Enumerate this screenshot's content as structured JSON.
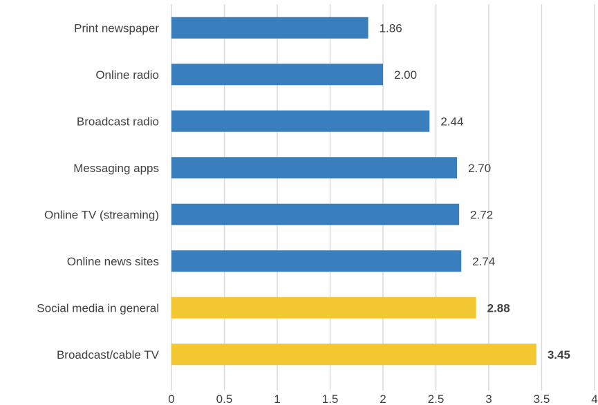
{
  "chart_data": {
    "type": "bar",
    "orientation": "horizontal",
    "categories": [
      "Print newspaper",
      "Online radio",
      "Broadcast radio",
      "Messaging apps",
      "Online TV (streaming)",
      "Online news sites",
      "Social media in general",
      "Broadcast/cable TV"
    ],
    "values": [
      1.86,
      2.0,
      2.44,
      2.7,
      2.72,
      2.74,
      2.88,
      3.45
    ],
    "data_labels": [
      "1.86",
      "2.00",
      "2.44",
      "2.70",
      "2.72",
      "2.74",
      "2.88",
      "3.45"
    ],
    "highlighted": [
      false,
      false,
      false,
      false,
      false,
      false,
      true,
      true
    ],
    "xlim": [
      0,
      4
    ],
    "xticks": [
      0,
      0.5,
      1,
      1.5,
      2,
      2.5,
      3,
      3.5,
      4
    ],
    "xtick_labels": [
      "0",
      "0.5",
      "1",
      "1.5",
      "2",
      "2.5",
      "3",
      "3.5",
      "4"
    ],
    "grid": true,
    "legend": "none",
    "title": "",
    "xlabel": "",
    "ylabel": "",
    "colors": {
      "bar": "#3a7fbd",
      "highlight": "#f4c832",
      "grid": "#d9d9d9",
      "text": "#404040"
    }
  }
}
